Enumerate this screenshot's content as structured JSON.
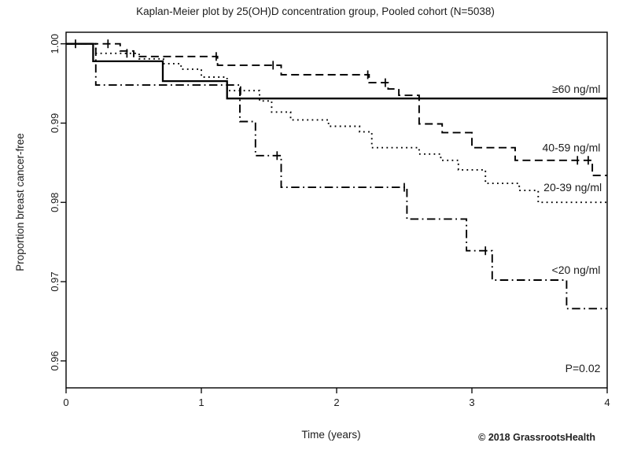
{
  "footer": {
    "credit": "© 2018 GrassrootsHealth"
  },
  "chart_data": {
    "type": "line",
    "subtype": "kaplan-meier-step",
    "title": "Kaplan-Meier plot by 25(OH)D concentration group, Pooled cohort (N=5038)",
    "xlabel": "Time (years)",
    "ylabel": "Proportion breast cancer-free",
    "xlim": [
      0,
      4
    ],
    "ylim": [
      0.9565,
      1.0015
    ],
    "xticks": [
      0,
      1,
      2,
      3,
      4
    ],
    "yticks": [
      {
        "value": 1.0,
        "label": "1.00"
      },
      {
        "value": 0.99,
        "label": "0.99"
      },
      {
        "value": 0.98,
        "label": "0.98"
      },
      {
        "value": 0.97,
        "label": "0.97"
      },
      {
        "value": 0.96,
        "label": "0.96"
      }
    ],
    "grid": false,
    "legend_position": "direct labels at right end of each curve",
    "line_color": "#000000",
    "annotations": [
      {
        "text": "P=0.02",
        "x_years": 3.95,
        "y_value": 0.9586
      }
    ],
    "series": [
      {
        "name": "≥60 ng/ml",
        "line_style": "solid",
        "color": "#000000",
        "label_anchor": {
          "x_years": 3.95,
          "y_value": 0.9938
        },
        "points": [
          [
            0,
            1.0
          ],
          [
            0.2,
            1.0
          ],
          [
            0.2,
            0.9978
          ],
          [
            0.715,
            0.9978
          ],
          [
            0.715,
            0.9953
          ],
          [
            1.19,
            0.9953
          ],
          [
            1.19,
            0.9931
          ],
          [
            4.0,
            0.9931
          ]
        ],
        "censor_marks": [
          [
            0.07,
            1.0
          ]
        ]
      },
      {
        "name": "40-59 ng/ml",
        "line_style": "dashed",
        "color": "#000000",
        "label_anchor": {
          "x_years": 3.95,
          "y_value": 0.9864
        },
        "points": [
          [
            0,
            1.0
          ],
          [
            0.4,
            1.0
          ],
          [
            0.4,
            0.9991
          ],
          [
            0.5,
            0.9991
          ],
          [
            0.5,
            0.9984
          ],
          [
            1.12,
            0.9984
          ],
          [
            1.12,
            0.9973
          ],
          [
            1.59,
            0.9973
          ],
          [
            1.59,
            0.9961
          ],
          [
            2.24,
            0.9961
          ],
          [
            2.24,
            0.9951
          ],
          [
            2.38,
            0.9951
          ],
          [
            2.38,
            0.9943
          ],
          [
            2.46,
            0.9943
          ],
          [
            2.46,
            0.9935
          ],
          [
            2.61,
            0.9935
          ],
          [
            2.61,
            0.9899
          ],
          [
            2.78,
            0.9899
          ],
          [
            2.78,
            0.9888
          ],
          [
            3.0,
            0.9888
          ],
          [
            3.0,
            0.9869
          ],
          [
            3.32,
            0.9869
          ],
          [
            3.32,
            0.9853
          ],
          [
            3.89,
            0.9853
          ],
          [
            3.89,
            0.9834
          ],
          [
            4.0,
            0.9834
          ]
        ],
        "censor_marks": [
          [
            0.31,
            1.0
          ],
          [
            1.11,
            0.9984
          ],
          [
            1.53,
            0.9973
          ],
          [
            2.23,
            0.9961
          ],
          [
            2.36,
            0.9951
          ],
          [
            3.78,
            0.9853
          ],
          [
            3.86,
            0.9853
          ]
        ]
      },
      {
        "name": "20-39 ng/ml",
        "line_style": "dotted",
        "color": "#000000",
        "label_anchor": {
          "x_years": 3.96,
          "y_value": 0.9814
        },
        "points": [
          [
            0,
            1.0
          ],
          [
            0.22,
            1.0
          ],
          [
            0.22,
            0.9988
          ],
          [
            0.54,
            0.9988
          ],
          [
            0.54,
            0.9981
          ],
          [
            0.72,
            0.9981
          ],
          [
            0.72,
            0.9975
          ],
          [
            0.85,
            0.9975
          ],
          [
            0.85,
            0.9968
          ],
          [
            1.0,
            0.9968
          ],
          [
            1.0,
            0.9958
          ],
          [
            1.19,
            0.9958
          ],
          [
            1.19,
            0.9941
          ],
          [
            1.43,
            0.9941
          ],
          [
            1.43,
            0.9928
          ],
          [
            1.52,
            0.9928
          ],
          [
            1.52,
            0.9914
          ],
          [
            1.66,
            0.9914
          ],
          [
            1.66,
            0.9904
          ],
          [
            1.94,
            0.9904
          ],
          [
            1.94,
            0.9896
          ],
          [
            2.17,
            0.9896
          ],
          [
            2.17,
            0.9889
          ],
          [
            2.26,
            0.9889
          ],
          [
            2.26,
            0.9869
          ],
          [
            2.61,
            0.9869
          ],
          [
            2.61,
            0.9861
          ],
          [
            2.77,
            0.9861
          ],
          [
            2.77,
            0.9853
          ],
          [
            2.9,
            0.9853
          ],
          [
            2.9,
            0.9841
          ],
          [
            3.1,
            0.9841
          ],
          [
            3.1,
            0.9824
          ],
          [
            3.35,
            0.9824
          ],
          [
            3.35,
            0.9815
          ],
          [
            3.49,
            0.9815
          ],
          [
            3.49,
            0.98
          ],
          [
            4.0,
            0.98
          ]
        ],
        "censor_marks": [
          [
            0.45,
            0.9988
          ],
          [
            1.29,
            0.9941
          ]
        ]
      },
      {
        "name": "<20 ng/ml",
        "line_style": "dash-dot",
        "color": "#000000",
        "label_anchor": {
          "x_years": 3.95,
          "y_value": 0.971
        },
        "points": [
          [
            0,
            1.0
          ],
          [
            0.22,
            1.0
          ],
          [
            0.22,
            0.9948
          ],
          [
            1.285,
            0.9948
          ],
          [
            1.285,
            0.9902
          ],
          [
            1.4,
            0.9902
          ],
          [
            1.4,
            0.9859
          ],
          [
            1.59,
            0.9859
          ],
          [
            1.59,
            0.9819
          ],
          [
            2.52,
            0.9819
          ],
          [
            2.52,
            0.9779
          ],
          [
            2.96,
            0.9779
          ],
          [
            2.96,
            0.9739
          ],
          [
            3.15,
            0.9739
          ],
          [
            3.15,
            0.9702
          ],
          [
            3.7,
            0.9702
          ],
          [
            3.7,
            0.9666
          ],
          [
            4.0,
            0.9666
          ]
        ],
        "censor_marks": [
          [
            1.56,
            0.9859
          ],
          [
            2.5,
            0.9819
          ],
          [
            3.1,
            0.9739
          ]
        ]
      }
    ]
  }
}
